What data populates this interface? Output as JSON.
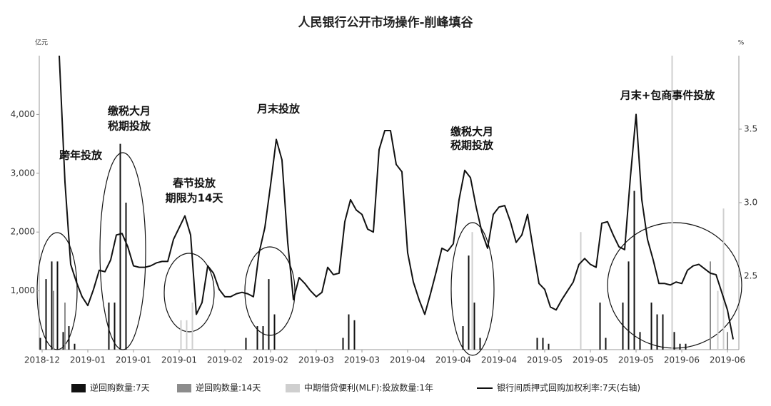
{
  "chart_data": {
    "type": "combo",
    "title": "人民银行公开市场操作-削峰填谷",
    "y_axis_label": "亿元",
    "y2_axis_label": "%",
    "annotations": [
      "跨年投放",
      "缴税大月",
      "税期投放",
      "春节投放",
      "期限为14天",
      "月末投放",
      "缴税大月",
      "税期投放",
      "月末+包商事件投放"
    ],
    "categories": [
      "2018-12",
      null,
      null,
      null,
      null,
      null,
      null,
      null,
      "2019-01",
      null,
      null,
      null,
      null,
      null,
      null,
      null,
      "2019-01",
      null,
      null,
      null,
      null,
      null,
      null,
      null,
      "2019-01",
      null,
      null,
      null,
      null,
      null,
      null,
      null,
      "2019-02",
      null,
      null,
      null,
      null,
      null,
      null,
      null,
      "2019-02",
      null,
      null,
      null,
      null,
      null,
      null,
      null,
      "2019-03",
      null,
      null,
      null,
      null,
      null,
      null,
      null,
      "2019-03",
      null,
      null,
      null,
      null,
      null,
      null,
      null,
      "2019-04",
      null,
      null,
      null,
      null,
      null,
      null,
      null,
      "2019-04",
      null,
      null,
      null,
      null,
      null,
      null,
      null,
      "2019-04",
      null,
      null,
      null,
      null,
      null,
      null,
      null,
      "2019-05",
      null,
      null,
      null,
      null,
      null,
      null,
      null,
      "2019-05",
      null,
      null,
      null,
      null,
      null,
      null,
      null,
      "2019-05",
      null,
      null,
      null,
      null,
      null,
      null,
      null,
      "2019-06",
      null,
      null,
      null,
      null,
      null,
      null,
      null,
      "2019-06",
      null
    ],
    "series": [
      {
        "name": "逆回购数量:7天",
        "type": "bar",
        "color": "#111111",
        "values": [
          200,
          1200,
          1500,
          1500,
          300,
          400,
          100,
          null,
          null,
          null,
          null,
          null,
          800,
          800,
          3500,
          2500,
          null,
          null,
          null,
          null,
          null,
          null,
          null,
          null,
          null,
          null,
          null,
          null,
          null,
          null,
          null,
          null,
          null,
          null,
          null,
          null,
          200,
          null,
          400,
          400,
          1200,
          600,
          null,
          null,
          null,
          null,
          null,
          null,
          null,
          null,
          null,
          null,
          null,
          200,
          600,
          500,
          null,
          null,
          null,
          null,
          null,
          null,
          null,
          null,
          null,
          null,
          null,
          null,
          null,
          null,
          null,
          null,
          null,
          null,
          400,
          1600,
          800,
          200,
          null,
          null,
          null,
          null,
          null,
          null,
          null,
          null,
          null,
          200,
          200,
          100,
          null,
          null,
          null,
          null,
          null,
          null,
          null,
          null,
          800,
          200,
          null,
          null,
          800,
          1500,
          2700,
          300,
          null,
          800,
          600,
          600,
          null,
          300,
          100,
          100,
          null,
          null,
          null,
          null,
          null,
          null,
          null,
          null
        ]
      },
      {
        "name": "逆回购数量:14天",
        "type": "bar",
        "color": "#8c8c8c",
        "values": [
          null,
          null,
          1000,
          null,
          800,
          null,
          null,
          null,
          null,
          null,
          null,
          null,
          null,
          null,
          null,
          null,
          null,
          null,
          null,
          null,
          null,
          null,
          null,
          null,
          null,
          null,
          null,
          null,
          null,
          null,
          null,
          null,
          null,
          null,
          null,
          null,
          null,
          null,
          null,
          null,
          null,
          null,
          null,
          null,
          null,
          null,
          null,
          null,
          null,
          null,
          null,
          null,
          null,
          null,
          null,
          null,
          null,
          null,
          null,
          null,
          null,
          null,
          null,
          null,
          null,
          null,
          null,
          null,
          null,
          null,
          null,
          null,
          null,
          null,
          null,
          null,
          null,
          null,
          null,
          null,
          null,
          null,
          null,
          null,
          null,
          null,
          null,
          null,
          null,
          null,
          null,
          null,
          null,
          null,
          null,
          null,
          null,
          null,
          null,
          null,
          null,
          null,
          null,
          null,
          null,
          null,
          null,
          null,
          null,
          null,
          null,
          null,
          null,
          null,
          null,
          null,
          null,
          1500,
          null,
          null,
          300,
          null
        ]
      },
      {
        "name": "中期借贷便利(MLF):投放数量:1年",
        "type": "bar",
        "color": "#cfcfcf",
        "values": [
          null,
          null,
          null,
          null,
          null,
          null,
          null,
          null,
          null,
          null,
          null,
          null,
          null,
          null,
          null,
          null,
          null,
          null,
          null,
          null,
          null,
          null,
          null,
          null,
          500,
          500,
          800,
          null,
          null,
          null,
          null,
          null,
          null,
          null,
          null,
          null,
          null,
          null,
          null,
          null,
          null,
          null,
          null,
          null,
          null,
          null,
          null,
          null,
          null,
          null,
          null,
          null,
          null,
          null,
          null,
          null,
          null,
          null,
          null,
          null,
          null,
          null,
          null,
          null,
          null,
          null,
          null,
          null,
          null,
          null,
          null,
          null,
          null,
          null,
          null,
          2000,
          null,
          null,
          null,
          null,
          null,
          null,
          null,
          null,
          null,
          null,
          null,
          null,
          null,
          null,
          null,
          null,
          null,
          null,
          2000,
          null,
          null,
          null,
          null,
          null,
          null,
          null,
          null,
          null,
          null,
          null,
          null,
          null,
          null,
          null,
          5000,
          null,
          null,
          null,
          null,
          null,
          null,
          null,
          1000,
          2400,
          null,
          null
        ]
      },
      {
        "name": "银行间质押式回购加权利率:7天(右轴)",
        "type": "line",
        "axis": "y2",
        "color": "#111111",
        "values": [
          null,
          null,
          null,
          4.0,
          3.14,
          2.58,
          2.46,
          2.36,
          2.3,
          2.41,
          2.54,
          2.53,
          2.61,
          2.78,
          2.79,
          2.7,
          2.57,
          2.56,
          2.56,
          2.57,
          2.59,
          2.6,
          2.6,
          2.75,
          2.83,
          2.91,
          2.78,
          2.24,
          2.32,
          2.57,
          2.52,
          2.41,
          2.36,
          2.36,
          2.38,
          2.39,
          2.38,
          2.36,
          2.66,
          2.83,
          3.12,
          3.43,
          3.29,
          2.73,
          2.34,
          2.49,
          2.45,
          2.4,
          2.36,
          2.39,
          2.56,
          2.51,
          2.52,
          2.87,
          3.02,
          2.95,
          2.92,
          2.82,
          2.8,
          3.36,
          3.49,
          3.49,
          3.26,
          3.21,
          2.66,
          2.46,
          2.34,
          2.24,
          2.38,
          2.53,
          2.69,
          2.67,
          2.72,
          3.02,
          3.22,
          3.17,
          2.97,
          2.8,
          2.69,
          2.92,
          2.97,
          2.98,
          2.87,
          2.73,
          2.78,
          2.92,
          2.68,
          2.45,
          2.41,
          2.29,
          2.27,
          2.34,
          2.4,
          2.46,
          2.58,
          2.62,
          2.58,
          2.56,
          2.86,
          2.87,
          2.78,
          2.7,
          2.68,
          3.17,
          3.6,
          3.02,
          2.75,
          2.61,
          2.45,
          2.45,
          2.44,
          2.46,
          2.45,
          2.54,
          2.57,
          2.58,
          2.55,
          2.52,
          2.51,
          2.39,
          2.27,
          2.07
        ]
      }
    ],
    "ylim": [
      0,
      5000
    ],
    "yticks": [
      {
        "value": 1000,
        "label": "1,000"
      },
      {
        "value": 2000,
        "label": "2,000"
      },
      {
        "value": 3000,
        "label": "3,000"
      },
      {
        "value": 4000,
        "label": "4,000"
      }
    ],
    "y2lim": [
      2,
      4
    ],
    "y2ticks": [
      2.5,
      {
        "value": 3,
        "label": "3.0"
      },
      3.5
    ]
  }
}
